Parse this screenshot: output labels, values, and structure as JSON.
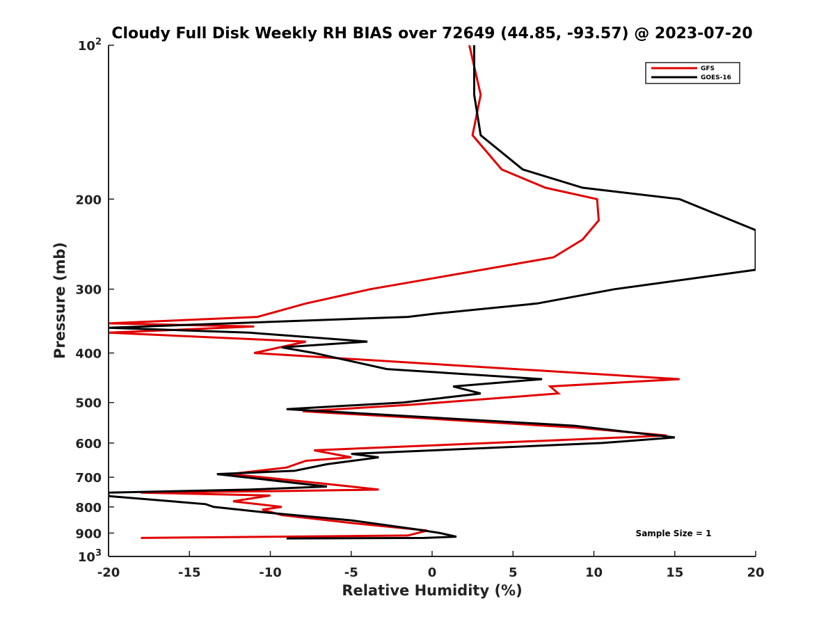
{
  "chart_data": {
    "type": "line",
    "title": "Cloudy Full Disk Weekly RH BIAS over 72649 (44.85, -93.57) @ 2023-07-20",
    "xlabel": "Relative Humidity (%)",
    "ylabel": "Pressure (mb)",
    "xlim": [
      -20,
      20
    ],
    "ylim": [
      100,
      1000
    ],
    "y_scale": "log",
    "y_reversed": true,
    "x_ticks": [
      "-20",
      "-15",
      "-10",
      "-5",
      "0",
      "5",
      "10",
      "15",
      "20"
    ],
    "y_ticks": [
      {
        "value": 100,
        "label": "10",
        "sup": "2"
      },
      {
        "value": 200,
        "label": "200",
        "sup": ""
      },
      {
        "value": 300,
        "label": "300",
        "sup": ""
      },
      {
        "value": 400,
        "label": "400",
        "sup": ""
      },
      {
        "value": 500,
        "label": "500",
        "sup": ""
      },
      {
        "value": 600,
        "label": "600",
        "sup": ""
      },
      {
        "value": 700,
        "label": "700",
        "sup": ""
      },
      {
        "value": 800,
        "label": "800",
        "sup": ""
      },
      {
        "value": 900,
        "label": "900",
        "sup": ""
      },
      {
        "value": 1000,
        "label": "10",
        "sup": "3"
      }
    ],
    "grid": false,
    "legend_position": "top-right",
    "annotation": "Sample Size = 1",
    "series": [
      {
        "name": "GFS",
        "color": "#e00000",
        "points": [
          [
            2.3,
            100
          ],
          [
            3.0,
            125
          ],
          [
            2.5,
            150
          ],
          [
            4.3,
            175
          ],
          [
            7.0,
            190
          ],
          [
            10.2,
            200
          ],
          [
            10.3,
            220
          ],
          [
            9.3,
            240
          ],
          [
            7.5,
            260
          ],
          [
            -3.8,
            300
          ],
          [
            -7.8,
            320
          ],
          [
            -10.8,
            340
          ],
          [
            -20.0,
            350
          ],
          [
            -11.0,
            355
          ],
          [
            -20.0,
            365
          ],
          [
            -7.8,
            380
          ],
          [
            -11.0,
            400
          ],
          [
            15.3,
            450
          ],
          [
            7.3,
            465
          ],
          [
            7.8,
            480
          ],
          [
            -1.3,
            505
          ],
          [
            -8.0,
            520
          ],
          [
            -1.3,
            535
          ],
          [
            9.0,
            560
          ],
          [
            14.5,
            580
          ],
          [
            9.0,
            590
          ],
          [
            -7.3,
            620
          ],
          [
            -5.0,
            640
          ],
          [
            -7.8,
            650
          ],
          [
            -9.0,
            670
          ],
          [
            -12.5,
            690
          ],
          [
            -10.5,
            700
          ],
          [
            -5.0,
            730
          ],
          [
            -3.3,
            740
          ],
          [
            -9.3,
            745
          ],
          [
            -18.0,
            750
          ],
          [
            -10.0,
            760
          ],
          [
            -12.3,
            780
          ],
          [
            -9.3,
            800
          ],
          [
            -10.5,
            810
          ],
          [
            -9.3,
            830
          ],
          [
            -5.0,
            860
          ],
          [
            -0.3,
            890
          ],
          [
            -1.5,
            910
          ],
          [
            -18.0,
            920
          ]
        ]
      },
      {
        "name": "GOES-16",
        "color": "#000000",
        "points": [
          [
            2.6,
            100
          ],
          [
            2.6,
            125
          ],
          [
            3.0,
            150
          ],
          [
            5.6,
            175
          ],
          [
            9.3,
            190
          ],
          [
            15.3,
            200
          ],
          [
            20.0,
            230
          ],
          [
            20.0,
            275
          ],
          [
            11.3,
            300
          ],
          [
            6.5,
            320
          ],
          [
            0.2,
            335
          ],
          [
            -1.5,
            340
          ],
          [
            -20.0,
            357
          ],
          [
            -11.3,
            365
          ],
          [
            -4.0,
            380
          ],
          [
            -9.3,
            390
          ],
          [
            -7.3,
            400
          ],
          [
            -2.8,
            430
          ],
          [
            6.8,
            450
          ],
          [
            1.3,
            465
          ],
          [
            3.0,
            480
          ],
          [
            -1.8,
            500
          ],
          [
            -9.0,
            515
          ],
          [
            8.8,
            555
          ],
          [
            15.0,
            585
          ],
          [
            10.5,
            600
          ],
          [
            -5.0,
            630
          ],
          [
            -3.3,
            640
          ],
          [
            -6.5,
            660
          ],
          [
            -8.5,
            680
          ],
          [
            -13.3,
            690
          ],
          [
            -6.5,
            730
          ],
          [
            -11.3,
            740
          ],
          [
            -20.0,
            750
          ],
          [
            -20.0,
            762
          ],
          [
            -14.0,
            790
          ],
          [
            -13.5,
            800
          ],
          [
            -10.3,
            820
          ],
          [
            -5.0,
            850
          ],
          [
            -1.0,
            885
          ],
          [
            0.5,
            900
          ],
          [
            1.5,
            915
          ],
          [
            -0.5,
            920
          ],
          [
            -9.0,
            922
          ]
        ]
      }
    ]
  }
}
